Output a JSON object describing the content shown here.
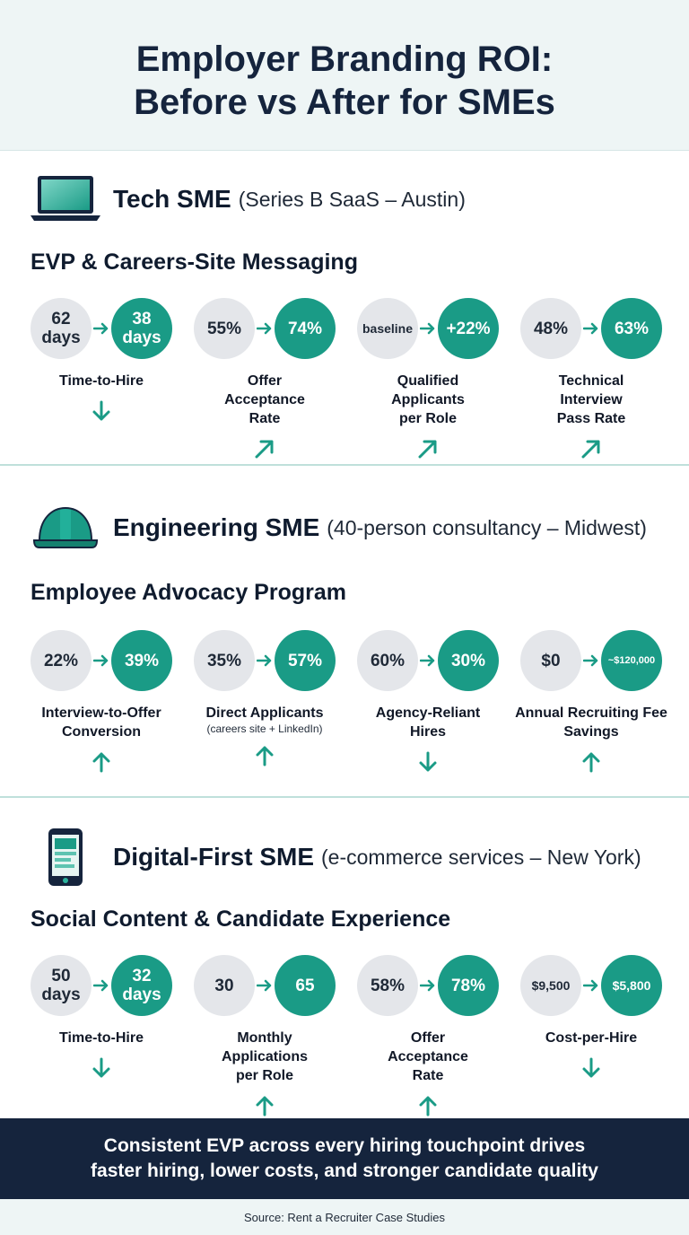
{
  "title": {
    "line1": "Employer Branding ROI:",
    "line2": "Before vs After for SMEs"
  },
  "colors": {
    "accent": "#1a9b86",
    "navy": "#15243d",
    "before_circle": "#e4e6ea",
    "header_bg": "#eef5f5"
  },
  "sections": [
    {
      "icon": "laptop-icon",
      "company": "Tech SME",
      "company_detail": "(Series B SaaS – Austin)",
      "subhead": "EVP & Careers-Site Messaging",
      "metrics": [
        {
          "before": "62 days",
          "after": "38 days",
          "label": "Time-to-Hire",
          "label_sub": "",
          "trend": "down"
        },
        {
          "before": "55%",
          "after": "74%",
          "label": "Offer Acceptance Rate",
          "label_sub": "",
          "trend": "up-right"
        },
        {
          "before": "baseline",
          "after": "+22%",
          "label": "Qualified Applicants per Role",
          "label_sub": "",
          "trend": "up-right"
        },
        {
          "before": "48%",
          "after": "63%",
          "label": "Technical Interview Pass Rate",
          "label_sub": "",
          "trend": "up-right"
        }
      ]
    },
    {
      "icon": "hard-hat-icon",
      "company": "Engineering SME",
      "company_detail": "(40-person consultancy – Midwest)",
      "subhead": "Employee Advocacy Program",
      "metrics": [
        {
          "before": "22%",
          "after": "39%",
          "label": "Interview-to-Offer Conversion",
          "label_sub": "",
          "trend": "up"
        },
        {
          "before": "35%",
          "after": "57%",
          "label": "Direct Applicants",
          "label_sub": "(careers site + LinkedIn)",
          "trend": "up"
        },
        {
          "before": "60%",
          "after": "30%",
          "label": "Agency-Reliant Hires",
          "label_sub": "",
          "trend": "down"
        },
        {
          "before": "$0",
          "after": "~$120,000",
          "label": "Annual Recruiting Fee Savings",
          "label_sub": "",
          "trend": "up"
        }
      ]
    },
    {
      "icon": "smartphone-icon",
      "company": "Digital-First SME",
      "company_detail": "(e-commerce services – New York)",
      "subhead": "Social Content & Candidate Experience",
      "metrics": [
        {
          "before": "50 days",
          "after": "32 days",
          "label": "Time-to-Hire",
          "label_sub": "",
          "trend": "down"
        },
        {
          "before": "30",
          "after": "65",
          "label": "Monthly Applications per Role",
          "label_sub": "",
          "trend": "up"
        },
        {
          "before": "58%",
          "after": "78%",
          "label": "Offer Acceptance Rate",
          "label_sub": "",
          "trend": "up"
        },
        {
          "before": "$9,500",
          "after": "$5,800",
          "label": "Cost-per-Hire",
          "label_sub": "",
          "trend": "down"
        }
      ]
    }
  ],
  "banner": {
    "line1": "Consistent EVP across every hiring touchpoint drives",
    "line2": "faster hiring, lower costs, and stronger candidate quality"
  },
  "source": "Source: Rent a Recruiter Case Studies"
}
